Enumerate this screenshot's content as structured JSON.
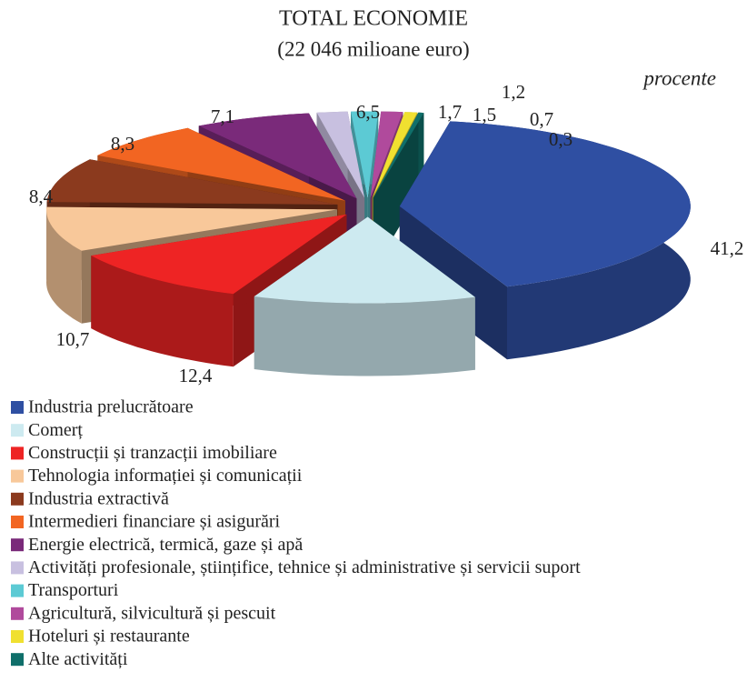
{
  "chart_data": {
    "type": "pie",
    "title": "TOTAL ECONOMIE",
    "subtitle": "(22 046 milioane euro)",
    "unit_label": "procente",
    "categories": [
      "Industria prelucrătoare",
      "Comerț",
      "Construcții și tranzacții imobiliare",
      "Tehnologia informației și comunicații",
      "Industria extractivă",
      "Intermedieri financiare și asigurări",
      "Energie electrică, termică, gaze și apă",
      "Activități profesionale, științifice, tehnice și administrative și servicii suport",
      "Transporturi",
      "Agricultură, silvicultură și pescuit",
      "Hoteluri și restaurante",
      "Alte activități"
    ],
    "values": [
      41.2,
      12.4,
      10.7,
      8.4,
      8.3,
      7.1,
      6.5,
      1.7,
      1.5,
      1.2,
      0.7,
      0.3
    ],
    "value_labels": [
      "41,2",
      "12,4",
      "10,7",
      "8,4",
      "8,3",
      "7,1",
      "6,5",
      "1,7",
      "1,5",
      "1,2",
      "0,7",
      "0,3"
    ],
    "colors": [
      "#2f4fa2",
      "#cdeaf0",
      "#ee2424",
      "#f8c89a",
      "#8b3a1e",
      "#f26522",
      "#7a2a7a",
      "#c8c0e0",
      "#5ccad4",
      "#b04a9c",
      "#f0e030",
      "#0f6f6a"
    ],
    "legend": "bottom-left"
  }
}
